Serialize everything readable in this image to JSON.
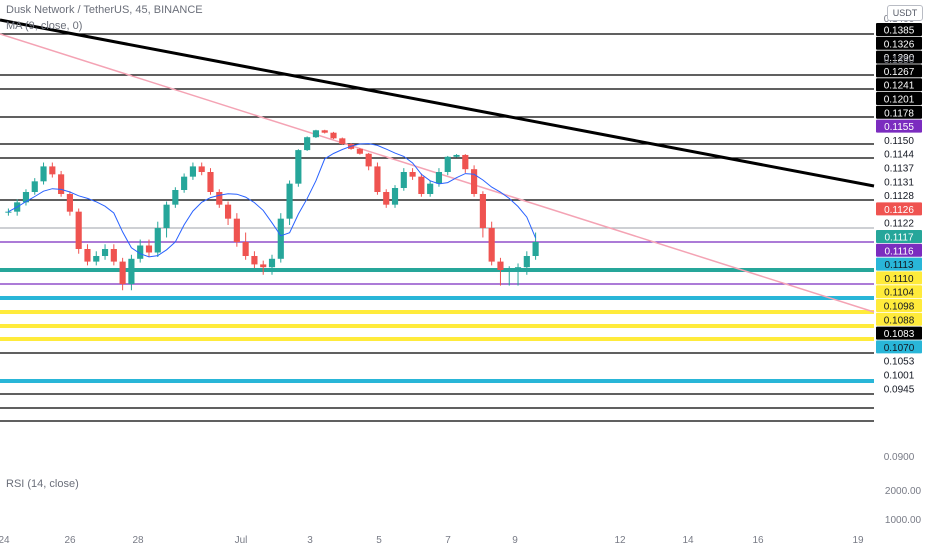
{
  "header": {
    "symbol_line": "Dusk Network / TetherUS, 45, BINANCE",
    "ma_line": "MA (9, close, 0)",
    "rsi_label": "RSI (14, close)",
    "currency": "USDT"
  },
  "colors": {
    "up": "#26a69a",
    "down": "#ef5350",
    "ma": "#2962ff",
    "background": "#ffffff",
    "trend_black": "#000000",
    "trend_pink": "#f4a3b4",
    "level_black": "#000000",
    "level_purple": "#7b2cbf",
    "level_blue": "#29b6d8",
    "level_yellow": "#ffeb3b"
  },
  "chart_data": {
    "type": "candlestick",
    "title": "Dusk Network / TetherUS, 45, BINANCE",
    "indicator": "MA (9, close, 0)",
    "x_tick_labels": [
      "24",
      "26",
      "28",
      "Jul",
      "3",
      "5",
      "7",
      "9",
      "12",
      "14",
      "16",
      "19"
    ],
    "y_axis_scale": "log",
    "y_axis_ticks": [
      "0.1400",
      "0.1350",
      "0.0900"
    ],
    "price_labels": [
      {
        "value": "0.1385",
        "color": "black"
      },
      {
        "value": "0.1326",
        "color": "black"
      },
      {
        "value": "0.1290",
        "color": "black"
      },
      {
        "value": "0.1267",
        "color": "black"
      },
      {
        "value": "0.1241",
        "color": "black"
      },
      {
        "value": "0.1201",
        "color": "black"
      },
      {
        "value": "0.1178",
        "color": "black"
      },
      {
        "value": "0.1155",
        "color": "purple"
      },
      {
        "value": "0.1150",
        "color": "white"
      },
      {
        "value": "0.1144",
        "color": "white"
      },
      {
        "value": "0.1137",
        "color": "white"
      },
      {
        "value": "0.1131",
        "color": "white"
      },
      {
        "value": "0.1128",
        "color": "white"
      },
      {
        "value": "0.1126",
        "color": "red"
      },
      {
        "value": "0.1122",
        "color": "white"
      },
      {
        "value": "0.1117",
        "color": "teal"
      },
      {
        "value": "0.1116",
        "color": "purple"
      },
      {
        "value": "0.1113",
        "color": "blue"
      },
      {
        "value": "0.1110",
        "color": "yellow"
      },
      {
        "value": "0.1104",
        "color": "yellow"
      },
      {
        "value": "0.1098",
        "color": "yellow"
      },
      {
        "value": "0.1088",
        "color": "yellow"
      },
      {
        "value": "0.1083",
        "color": "black"
      },
      {
        "value": "0.1070",
        "color": "blue"
      },
      {
        "value": "0.1053",
        "color": "white"
      },
      {
        "value": "0.1001",
        "color": "white"
      },
      {
        "value": "0.0945",
        "color": "white"
      }
    ],
    "last_price": 0.1126,
    "horizontal_levels": [
      {
        "value": 0.1385,
        "color": "black"
      },
      {
        "value": 0.1326,
        "color": "black"
      },
      {
        "value": 0.129,
        "color": "black"
      },
      {
        "value": 0.1241,
        "color": "black"
      },
      {
        "value": 0.1178,
        "color": "black"
      },
      {
        "value": 0.1155,
        "color": "black"
      },
      {
        "value": 0.1137,
        "color": "black"
      },
      {
        "value": 0.1128,
        "color": "grey"
      },
      {
        "value": 0.1126,
        "color": "purple"
      },
      {
        "value": 0.1117,
        "color": "teal"
      },
      {
        "value": 0.1116,
        "color": "purple"
      },
      {
        "value": 0.1113,
        "color": "blue"
      },
      {
        "value": 0.111,
        "color": "yellow"
      },
      {
        "value": 0.1104,
        "color": "yellow"
      },
      {
        "value": 0.1098,
        "color": "yellow"
      },
      {
        "value": 0.1088,
        "color": "black"
      },
      {
        "value": 0.107,
        "color": "blue"
      },
      {
        "value": 0.1053,
        "color": "black"
      },
      {
        "value": 0.1001,
        "color": "black"
      },
      {
        "value": 0.0945,
        "color": "black"
      }
    ],
    "trendlines": [
      {
        "name": "",
        "color": "black",
        "from": [
          0,
          0.14
        ],
        "to": [
          1,
          0.1144
        ]
      },
      {
        "name": "",
        "color": "pink",
        "from": [
          0,
          0.1385
        ],
        "to": [
          1,
          0.111
        ]
      }
    ],
    "rsi_axis_ticks": [
      "2000.00",
      "1000.00"
    ],
    "candles_close": [
      0.1132,
      0.1136,
      0.1141,
      0.1146,
      0.1152,
      0.1149,
      0.114,
      0.1132,
      0.1124,
      0.112,
      0.1122,
      0.1124,
      0.112,
      0.1116,
      0.1121,
      0.1125,
      0.1123,
      0.1128,
      0.1135,
      0.1142,
      0.1148,
      0.1152,
      0.115,
      0.1141,
      0.1135,
      0.113,
      0.1126,
      0.1122,
      0.1119,
      0.1118,
      0.1121,
      0.113,
      0.1145,
      0.1168,
      0.119,
      0.1203,
      0.1198,
      0.1188,
      0.1178,
      0.117,
      0.1162,
      0.1152,
      0.1141,
      0.1135,
      0.1143,
      0.115,
      0.1148,
      0.114,
      0.1145,
      0.115,
      0.1157,
      0.116,
      0.1151,
      0.114,
      0.1128,
      0.112,
      0.1117,
      0.1117,
      0.1118,
      0.1122,
      0.1126
    ]
  }
}
